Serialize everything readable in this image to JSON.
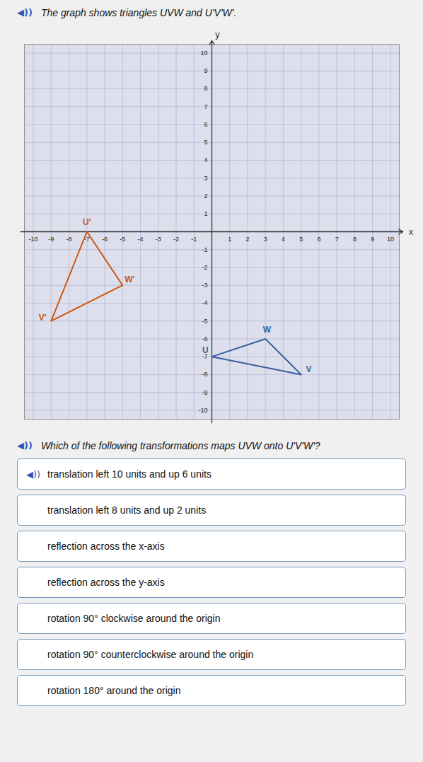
{
  "chart_data": {
    "type": "polygon",
    "title": "The graph shows triangles UVW and U'V'W'.",
    "xlabel": "x",
    "ylabel": "y",
    "xlim": [
      -10.5,
      10.5
    ],
    "ylim": [
      -10.5,
      10.5
    ],
    "xticks": [
      -10,
      -9,
      -8,
      -7,
      -6,
      -5,
      -4,
      -3,
      -2,
      -1,
      1,
      2,
      3,
      4,
      5,
      6,
      7,
      8,
      9,
      10
    ],
    "yticks": [
      -10,
      -9,
      -8,
      -7,
      -6,
      -5,
      -4,
      -3,
      -2,
      -1,
      1,
      2,
      3,
      4,
      5,
      6,
      7,
      8,
      9,
      10
    ],
    "grid": true,
    "grid_color": "#aaaacc",
    "axis_color": "#333333",
    "bg_color": "#dde0ec",
    "shapes": [
      {
        "color": "#3a5f9e",
        "vertices": [
          {
            "label": "U",
            "x": 0,
            "y": -7
          },
          {
            "label": "V",
            "x": 5,
            "y": -8
          },
          {
            "label": "W",
            "x": 3,
            "y": -6
          }
        ]
      },
      {
        "color": "#cc5511",
        "vertices": [
          {
            "label": "U'",
            "x": -7,
            "y": 0
          },
          {
            "label": "V'",
            "x": -9,
            "y": -5
          },
          {
            "label": "W'",
            "x": -5,
            "y": -3
          }
        ]
      }
    ],
    "question": "Which of the following transformations maps UVW onto U'V'W'?",
    "options": [
      "translation left 10 units and up 6 units",
      "translation left 8 units and up 2 units",
      "reflection across the x-axis",
      "reflection across the y-axis",
      "rotation 90° clockwise around the origin",
      "rotation 90° counterclockwise around the origin",
      "rotation 180° around the origin"
    ],
    "icon": "◀))",
    "icon_color": "#3355bb",
    "option_border_color": "#7799bb"
  }
}
